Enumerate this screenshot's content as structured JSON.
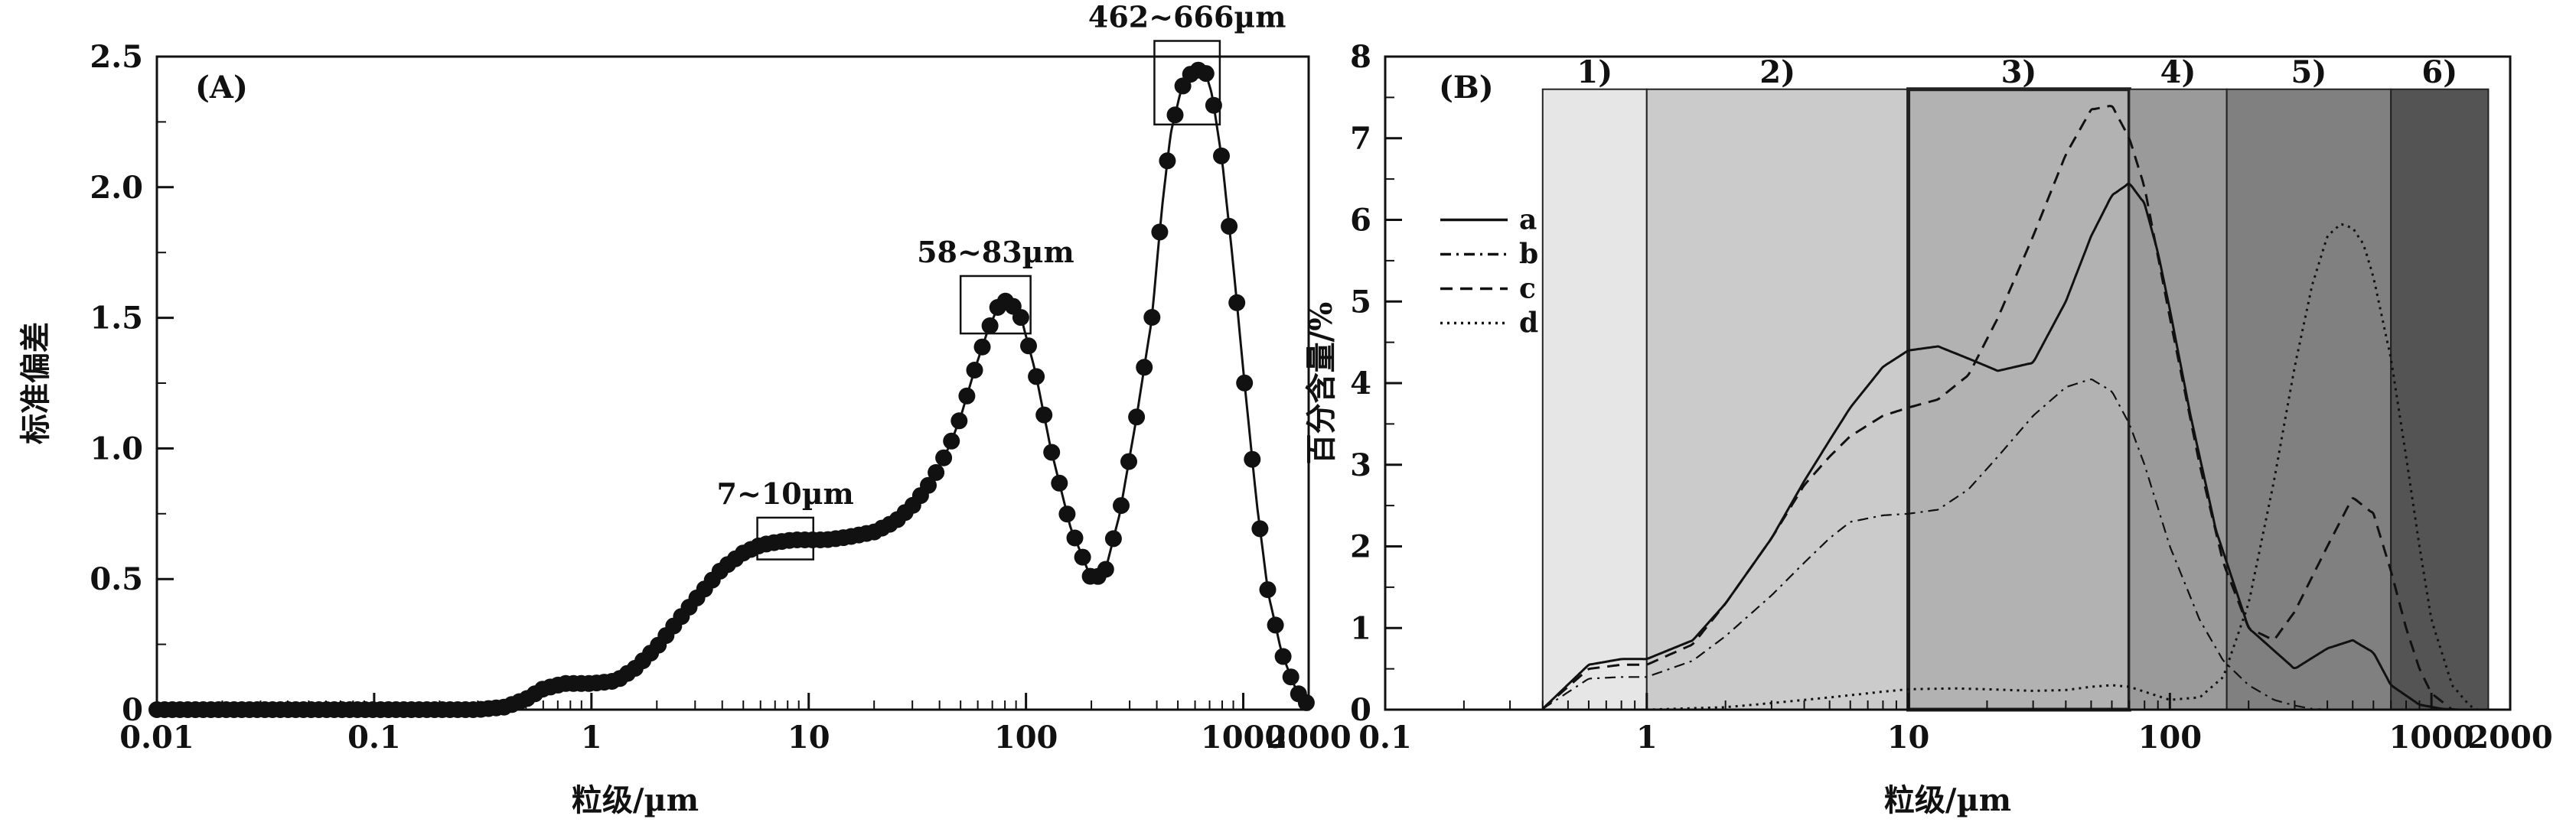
{
  "chart_data": [
    {
      "type": "scatter",
      "panel_label": "(A)",
      "xscale": "log",
      "xlim": [
        0.01,
        2000
      ],
      "ylim": [
        0,
        2.5
      ],
      "xticks": [
        "0.01",
        "0.1",
        "1",
        "10",
        "100",
        "1000",
        "2000"
      ],
      "yticks": [
        "0",
        "0.5",
        "1.0",
        "1.5",
        "2.0",
        "2.5"
      ],
      "xlabel": "粒级/µm",
      "ylabel": "标准偏差",
      "annotations": [
        "7~10µm",
        "58~83µm",
        "462~666µm"
      ],
      "curve": {
        "x": [
          0.01,
          0.3,
          0.4,
          0.5,
          0.6,
          0.75,
          1.0,
          1.3,
          1.6,
          2.0,
          2.5,
          3.0,
          4.0,
          5.0,
          6.0,
          7.0,
          8.5,
          10,
          12,
          15,
          20,
          25,
          30,
          35,
          40,
          45,
          50,
          58,
          66,
          75,
          83,
          95,
          110,
          130,
          160,
          200,
          230,
          270,
          320,
          380,
          420,
          462,
          520,
          580,
          630,
          666,
          720,
          800,
          900,
          1000,
          1150,
          1300,
          1500,
          1700,
          1850,
          2000
        ],
        "y": [
          0,
          0,
          0.01,
          0.04,
          0.08,
          0.1,
          0.1,
          0.11,
          0.16,
          0.24,
          0.34,
          0.42,
          0.54,
          0.6,
          0.63,
          0.64,
          0.65,
          0.65,
          0.65,
          0.66,
          0.68,
          0.72,
          0.78,
          0.85,
          0.93,
          1.02,
          1.12,
          1.3,
          1.44,
          1.55,
          1.57,
          1.5,
          1.3,
          1.0,
          0.7,
          0.5,
          0.52,
          0.75,
          1.1,
          1.5,
          1.9,
          2.2,
          2.38,
          2.44,
          2.45,
          2.45,
          2.35,
          2.1,
          1.7,
          1.3,
          0.8,
          0.45,
          0.22,
          0.1,
          0.04,
          0.02
        ]
      }
    },
    {
      "type": "line",
      "panel_label": "(B)",
      "xscale": "log",
      "xlim": [
        0.1,
        2000
      ],
      "ylim": [
        0,
        8
      ],
      "xticks": [
        "0.1",
        "1",
        "10",
        "100",
        "1000",
        "2000"
      ],
      "yticks": [
        "0",
        "1",
        "2",
        "3",
        "4",
        "5",
        "6",
        "7",
        "8"
      ],
      "xlabel": "粒级/µm",
      "ylabel": "百分含量/%",
      "zones": [
        {
          "label": "1)",
          "from": 0.4,
          "to": 1,
          "color": "#e6e6e6"
        },
        {
          "label": "2)",
          "from": 1,
          "to": 10,
          "color": "#cbcbcb"
        },
        {
          "label": "3)",
          "from": 10,
          "to": 70,
          "color": "#b2b2b2"
        },
        {
          "label": "4)",
          "from": 70,
          "to": 165,
          "color": "#9a9a9a"
        },
        {
          "label": "5)",
          "from": 165,
          "to": 700,
          "color": "#808080"
        },
        {
          "label": "6)",
          "from": 700,
          "to": 1650,
          "color": "#545454"
        }
      ],
      "series": [
        {
          "name": "a",
          "style": "solid",
          "x": [
            0.4,
            0.6,
            0.8,
            1.0,
            1.5,
            2,
            3,
            4,
            5,
            6,
            8,
            10,
            13,
            17,
            22,
            30,
            40,
            50,
            60,
            70,
            80,
            90,
            100,
            120,
            150,
            200,
            300,
            400,
            500,
            600,
            700,
            900,
            1100,
            1300,
            1500
          ],
          "y": [
            0.01,
            0.55,
            0.62,
            0.62,
            0.85,
            1.3,
            2.1,
            2.8,
            3.3,
            3.7,
            4.2,
            4.4,
            4.45,
            4.3,
            4.15,
            4.25,
            5.0,
            5.8,
            6.3,
            6.45,
            6.2,
            5.6,
            4.9,
            3.6,
            2.2,
            1.0,
            0.5,
            0.75,
            0.85,
            0.7,
            0.3,
            0.06,
            0.01,
            0.0,
            0.0
          ]
        },
        {
          "name": "b",
          "style": "dashdot",
          "x": [
            0.4,
            0.6,
            0.8,
            1.0,
            1.5,
            2,
            3,
            4,
            5,
            6,
            8,
            10,
            13,
            17,
            22,
            30,
            40,
            50,
            60,
            70,
            80,
            100,
            130,
            160,
            200,
            250,
            300,
            350,
            400
          ],
          "y": [
            0.01,
            0.38,
            0.4,
            0.4,
            0.6,
            0.9,
            1.4,
            1.8,
            2.1,
            2.3,
            2.38,
            2.4,
            2.45,
            2.7,
            3.1,
            3.6,
            3.95,
            4.05,
            3.9,
            3.5,
            3.0,
            2.0,
            1.1,
            0.6,
            0.3,
            0.12,
            0.05,
            0.01,
            0.0
          ]
        },
        {
          "name": "c",
          "style": "dashed",
          "x": [
            0.4,
            0.6,
            0.8,
            1.0,
            1.5,
            2,
            3,
            4,
            5,
            6,
            8,
            10,
            13,
            17,
            22,
            30,
            40,
            50,
            60,
            70,
            80,
            100,
            130,
            160,
            200,
            250,
            300,
            400,
            500,
            600,
            700,
            800,
            900,
            1000,
            1200
          ],
          "y": [
            0.01,
            0.5,
            0.55,
            0.55,
            0.8,
            1.3,
            2.1,
            2.75,
            3.1,
            3.35,
            3.6,
            3.7,
            3.8,
            4.1,
            4.8,
            5.8,
            6.8,
            7.35,
            7.4,
            7.0,
            6.4,
            4.8,
            3.0,
            1.8,
            1.0,
            0.85,
            1.2,
            2.0,
            2.6,
            2.4,
            1.7,
            1.0,
            0.5,
            0.2,
            0.0
          ]
        },
        {
          "name": "d",
          "style": "dotted",
          "x": [
            0.4,
            1.0,
            2,
            3,
            5,
            8,
            10,
            15,
            20,
            30,
            40,
            50,
            60,
            70,
            80,
            100,
            130,
            160,
            200,
            250,
            300,
            350,
            400,
            450,
            500,
            550,
            600,
            700,
            800,
            900,
            1000,
            1200,
            1400,
            1500
          ],
          "y": [
            0,
            0,
            0.03,
            0.08,
            0.15,
            0.22,
            0.25,
            0.26,
            0.25,
            0.23,
            0.24,
            0.28,
            0.3,
            0.28,
            0.22,
            0.12,
            0.15,
            0.4,
            1.3,
            2.8,
            4.2,
            5.2,
            5.8,
            5.95,
            5.9,
            5.7,
            5.3,
            4.3,
            3.1,
            2.0,
            1.1,
            0.3,
            0.05,
            0.0
          ]
        }
      ]
    }
  ]
}
